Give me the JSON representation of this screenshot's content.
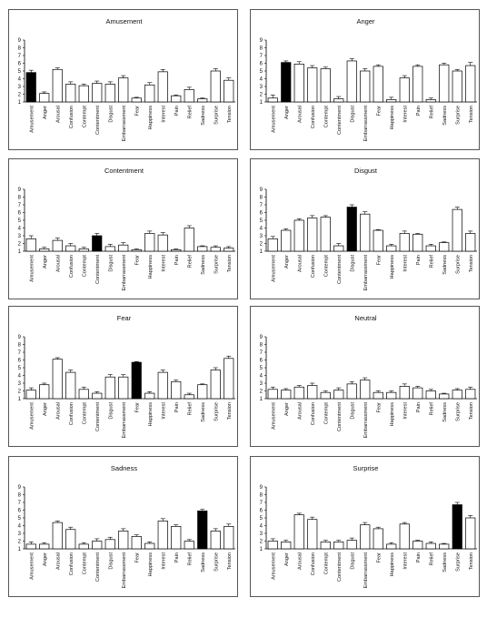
{
  "figure": {
    "categories": [
      "Amusement",
      "Anger",
      "Arousal",
      "Confusion",
      "Contempt",
      "Contentment",
      "Disgust",
      "Embarrassment",
      "Fear",
      "Happiness",
      "Interest",
      "Pain",
      "Relief",
      "Sadness",
      "Surprise",
      "Tension"
    ]
  },
  "chart_data": [
    {
      "type": "bar",
      "title": "Amusement",
      "highlight": "Amusement",
      "ylim": [
        1,
        9
      ],
      "yticks": [
        1,
        2,
        3,
        4,
        5,
        6,
        7,
        8,
        9
      ],
      "categories": [
        "Amusement",
        "Anger",
        "Arousal",
        "Confusion",
        "Contempt",
        "Contentment",
        "Disgust",
        "Embarrassment",
        "Fear",
        "Happiness",
        "Interest",
        "Pain",
        "Relief",
        "Sadness",
        "Surprise",
        "Tension"
      ],
      "values": [
        4.8,
        2.1,
        5.2,
        3.3,
        3.1,
        3.4,
        3.3,
        4.1,
        1.5,
        3.2,
        4.9,
        1.8,
        2.6,
        1.4,
        5.0,
        3.8
      ],
      "errors": [
        0.3,
        0.2,
        0.2,
        0.3,
        0.2,
        0.3,
        0.3,
        0.3,
        0.1,
        0.3,
        0.3,
        0.1,
        0.3,
        0.1,
        0.3,
        0.3
      ]
    },
    {
      "type": "bar",
      "title": "Anger",
      "highlight": "Anger",
      "ylim": [
        1,
        9
      ],
      "yticks": [
        1,
        2,
        3,
        4,
        5,
        6,
        7,
        8,
        9
      ],
      "categories": [
        "Amusement",
        "Anger",
        "Arousal",
        "Confusion",
        "Contempt",
        "Contentment",
        "Disgust",
        "Embarrassment",
        "Fear",
        "Happiness",
        "Interest",
        "Pain",
        "Relief",
        "Sadness",
        "Surprise",
        "Tension"
      ],
      "values": [
        1.5,
        6.1,
        5.9,
        5.4,
        5.3,
        1.4,
        6.3,
        5.0,
        5.6,
        1.3,
        4.1,
        5.6,
        1.3,
        5.8,
        5.0,
        5.7
      ],
      "errors": [
        0.4,
        0.2,
        0.3,
        0.3,
        0.2,
        0.3,
        0.3,
        0.3,
        0.2,
        0.3,
        0.3,
        0.2,
        0.2,
        0.2,
        0.2,
        0.4
      ]
    },
    {
      "type": "bar",
      "title": "Contentment",
      "highlight": "Contentment",
      "ylim": [
        1,
        9
      ],
      "yticks": [
        1,
        2,
        3,
        4,
        5,
        6,
        7,
        8,
        9
      ],
      "categories": [
        "Amusement",
        "Anger",
        "Arousal",
        "Confusion",
        "Contempt",
        "Contentment",
        "Disgust",
        "Embarrassment",
        "Fear",
        "Happiness",
        "Interest",
        "Pain",
        "Relief",
        "Sadness",
        "Surprise",
        "Tension"
      ],
      "values": [
        2.6,
        1.3,
        2.4,
        1.7,
        1.3,
        3.0,
        1.6,
        1.8,
        1.2,
        3.3,
        3.1,
        1.2,
        4.0,
        1.6,
        1.5,
        1.4
      ],
      "errors": [
        0.4,
        0.2,
        0.3,
        0.3,
        0.2,
        0.3,
        0.3,
        0.3,
        0.1,
        0.3,
        0.3,
        0.1,
        0.3,
        0.1,
        0.2,
        0.2
      ]
    },
    {
      "type": "bar",
      "title": "Disgust",
      "highlight": "Disgust",
      "ylim": [
        1,
        9
      ],
      "yticks": [
        1,
        2,
        3,
        4,
        5,
        6,
        7,
        8,
        9
      ],
      "categories": [
        "Amusement",
        "Anger",
        "Arousal",
        "Confusion",
        "Contempt",
        "Contentment",
        "Disgust",
        "Embarrassment",
        "Fear",
        "Happiness",
        "Interest",
        "Pain",
        "Relief",
        "Sadness",
        "Surprise",
        "Tension"
      ],
      "values": [
        2.6,
        3.7,
        5.0,
        5.3,
        5.4,
        1.7,
        6.7,
        5.8,
        3.7,
        1.7,
        3.3,
        3.2,
        1.7,
        2.1,
        6.4,
        3.3
      ],
      "errors": [
        0.3,
        0.2,
        0.2,
        0.3,
        0.2,
        0.3,
        0.3,
        0.3,
        0.1,
        0.2,
        0.3,
        0.1,
        0.2,
        0.1,
        0.3,
        0.3
      ]
    },
    {
      "type": "bar",
      "title": "Fear",
      "highlight": "Fear",
      "ylim": [
        1,
        9
      ],
      "yticks": [
        1,
        2,
        3,
        4,
        5,
        6,
        7,
        8,
        9
      ],
      "categories": [
        "Amusement",
        "Anger",
        "Arousal",
        "Confusion",
        "Contempt",
        "Contentment",
        "Disgust",
        "Embarrassment",
        "Fear",
        "Happiness",
        "Interest",
        "Pain",
        "Relief",
        "Sadness",
        "Surprise",
        "Tension"
      ],
      "values": [
        2.1,
        2.8,
        6.1,
        4.4,
        2.2,
        1.7,
        3.8,
        3.8,
        5.7,
        1.7,
        4.4,
        3.2,
        1.5,
        2.8,
        4.7,
        6.2
      ],
      "errors": [
        0.3,
        0.2,
        0.2,
        0.3,
        0.3,
        0.2,
        0.3,
        0.3,
        0.1,
        0.2,
        0.3,
        0.2,
        0.2,
        0.1,
        0.3,
        0.3
      ]
    },
    {
      "type": "bar",
      "title": "Neutral",
      "highlight": null,
      "ylim": [
        1,
        9
      ],
      "yticks": [
        1,
        2,
        3,
        4,
        5,
        6,
        7,
        8,
        9
      ],
      "categories": [
        "Amusement",
        "Anger",
        "Arousal",
        "Confusion",
        "Contempt",
        "Contentment",
        "Disgust",
        "Embarrassment",
        "Fear",
        "Happiness",
        "Interest",
        "Pain",
        "Relief",
        "Sadness",
        "Surprise",
        "Tension"
      ],
      "values": [
        2.2,
        2.1,
        2.5,
        2.7,
        1.8,
        2.1,
        2.9,
        3.4,
        1.8,
        1.8,
        2.6,
        2.4,
        2.0,
        1.6,
        2.1,
        2.2
      ],
      "errors": [
        0.3,
        0.2,
        0.2,
        0.3,
        0.2,
        0.3,
        0.3,
        0.3,
        0.2,
        0.2,
        0.3,
        0.2,
        0.2,
        0.1,
        0.2,
        0.3
      ]
    },
    {
      "type": "bar",
      "title": "Sadness",
      "highlight": "Sadness",
      "ylim": [
        1,
        9
      ],
      "yticks": [
        1,
        2,
        3,
        4,
        5,
        6,
        7,
        8,
        9
      ],
      "categories": [
        "Amusement",
        "Anger",
        "Arousal",
        "Confusion",
        "Contempt",
        "Contentment",
        "Disgust",
        "Embarrassment",
        "Fear",
        "Happiness",
        "Interest",
        "Pain",
        "Relief",
        "Sadness",
        "Surprise",
        "Tension"
      ],
      "values": [
        1.6,
        1.6,
        4.4,
        3.5,
        1.6,
        2.0,
        2.2,
        3.3,
        2.6,
        1.7,
        4.6,
        3.9,
        2.0,
        5.9,
        3.3,
        3.9
      ],
      "errors": [
        0.3,
        0.2,
        0.2,
        0.3,
        0.2,
        0.3,
        0.3,
        0.3,
        0.2,
        0.2,
        0.3,
        0.2,
        0.2,
        0.2,
        0.3,
        0.3
      ]
    },
    {
      "type": "bar",
      "title": "Surprise",
      "highlight": "Surprise",
      "ylim": [
        1,
        9
      ],
      "yticks": [
        1,
        2,
        3,
        4,
        5,
        6,
        7,
        8,
        9
      ],
      "categories": [
        "Amusement",
        "Anger",
        "Arousal",
        "Confusion",
        "Contempt",
        "Contentment",
        "Disgust",
        "Embarrassment",
        "Fear",
        "Happiness",
        "Interest",
        "Pain",
        "Relief",
        "Sadness",
        "Surprise",
        "Tension"
      ],
      "values": [
        2.0,
        1.9,
        5.4,
        4.8,
        1.9,
        1.9,
        2.1,
        4.1,
        3.6,
        1.6,
        4.2,
        2.0,
        1.7,
        1.6,
        6.7,
        5.0
      ],
      "errors": [
        0.3,
        0.2,
        0.2,
        0.3,
        0.2,
        0.2,
        0.3,
        0.3,
        0.2,
        0.2,
        0.2,
        0.1,
        0.2,
        0.1,
        0.3,
        0.3
      ]
    }
  ]
}
